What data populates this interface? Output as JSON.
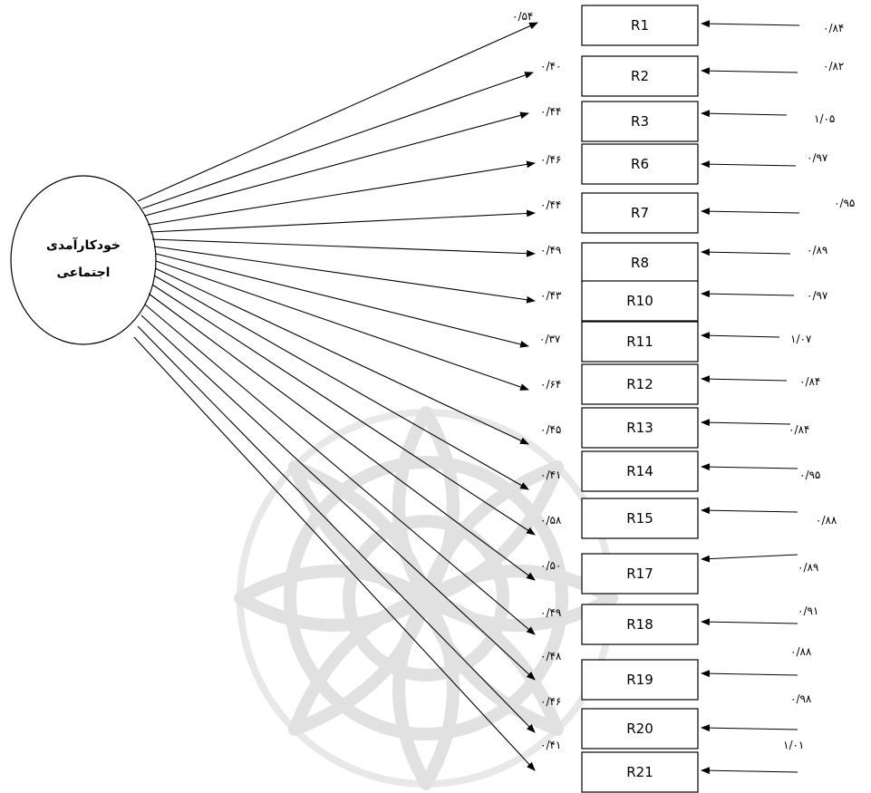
{
  "latent": {
    "label_line1": "خودکارآمدی",
    "label_line2": "اجتماعی"
  },
  "items": [
    {
      "label": "R1",
      "loading": "۰/۵۴",
      "error": "۰/۸۴"
    },
    {
      "label": "R2",
      "loading": "۰/۴۰",
      "error": "۰/۸۲"
    },
    {
      "label": "R3",
      "loading": "۰/۴۴",
      "error": "۱/۰۵"
    },
    {
      "label": "R6",
      "loading": "۰/۴۶",
      "error": "۰/۹۷"
    },
    {
      "label": "R7",
      "loading": "۰/۴۴",
      "error": "۰/۹۵"
    },
    {
      "label": "R8",
      "loading": "۰/۴۹",
      "error": "۰/۸۹"
    },
    {
      "label": "R10",
      "loading": "۰/۴۳",
      "error": "۰/۹۷"
    },
    {
      "label": "R11",
      "loading": "۰/۳۷",
      "error": "۱/۰۷"
    },
    {
      "label": "R12",
      "loading": "۰/۶۴",
      "error": "۰/۸۴"
    },
    {
      "label": "R13",
      "loading": "۰/۴۵",
      "error": "۰/۸۴"
    },
    {
      "label": "R14",
      "loading": "۰/۴۱",
      "error": "۰/۹۵"
    },
    {
      "label": "R15",
      "loading": "۰/۵۸",
      "error": "۰/۸۸"
    },
    {
      "label": "R17",
      "loading": "۰/۵۰",
      "error": "۰/۸۹"
    },
    {
      "label": "R18",
      "loading": "۰/۴۹",
      "error": "۰/۹۱"
    },
    {
      "label": "R19",
      "loading": "۰/۴۸",
      "error": "۰/۸۸"
    },
    {
      "label": "R20",
      "loading": "۰/۴۶",
      "error": "۰/۹۸"
    },
    {
      "label": "R21",
      "loading": "۰/۴۱",
      "error": "۱/۰۱"
    }
  ]
}
